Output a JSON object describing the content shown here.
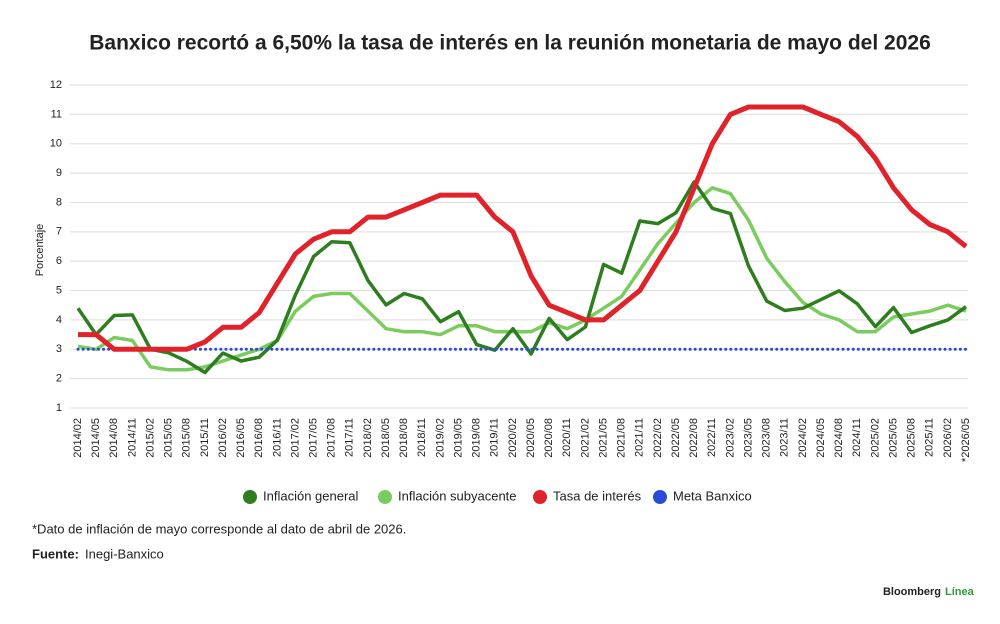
{
  "chart_data": {
    "type": "line",
    "title": "Banxico recortó a 6,50% la tasa de interés en la reunión monetaria de mayo del 2026",
    "y_label": "Porcentaje",
    "categories": [
      "2014/02",
      "2014/05",
      "2014/08",
      "2014/11",
      "2015/02",
      "2015/05",
      "2015/08",
      "2015/11",
      "2016/02",
      "2016/05",
      "2016/08",
      "2016/11",
      "2017/02",
      "2017/05",
      "2017/08",
      "2017/11",
      "2018/02",
      "2018/05",
      "2018/08",
      "2018/11",
      "2019/02",
      "2019/05",
      "2019/08",
      "2019/11",
      "2020/02",
      "2020/05",
      "2020/08",
      "2020/11",
      "2021/02",
      "2021/05",
      "2021/08",
      "2021/11",
      "2022/02",
      "2022/05",
      "2022/08",
      "2022/11",
      "2023/02",
      "2023/05",
      "2023/08",
      "2023/11",
      "2024/02",
      "2024/05",
      "2024/08",
      "2024/11",
      "2025/02",
      "2025/05",
      "2025/08",
      "2025/11",
      "2026/02",
      "*2026/05"
    ],
    "series": [
      {
        "name": "Inflación general",
        "color": "#2e7d1f",
        "values": [
          4.4,
          3.5,
          4.15,
          4.17,
          3.0,
          2.88,
          2.59,
          2.21,
          2.87,
          2.6,
          2.73,
          3.31,
          4.86,
          6.16,
          6.66,
          6.63,
          5.34,
          4.51,
          4.9,
          4.72,
          3.94,
          4.28,
          3.16,
          2.97,
          3.7,
          2.84,
          4.05,
          3.33,
          3.76,
          5.89,
          5.59,
          7.37,
          7.28,
          7.65,
          8.7,
          7.8,
          7.62,
          5.84,
          4.64,
          4.32,
          4.4,
          4.69,
          4.99,
          4.55,
          3.77,
          4.42,
          3.57,
          3.8,
          4.0,
          4.45
        ]
      },
      {
        "name": "Inflación subyacente",
        "color": "#7acc5e",
        "values": [
          3.1,
          3.0,
          3.4,
          3.3,
          2.4,
          2.3,
          2.3,
          2.4,
          2.6,
          2.8,
          3.0,
          3.3,
          4.3,
          4.8,
          4.9,
          4.9,
          4.3,
          3.7,
          3.6,
          3.6,
          3.5,
          3.8,
          3.8,
          3.6,
          3.6,
          3.6,
          3.9,
          3.7,
          4.0,
          4.4,
          4.8,
          5.7,
          6.6,
          7.3,
          8.0,
          8.5,
          8.3,
          7.4,
          6.1,
          5.3,
          4.6,
          4.2,
          4.0,
          3.6,
          3.6,
          4.1,
          4.2,
          4.3,
          4.5,
          4.3
        ]
      },
      {
        "name": "Tasa de interés",
        "color": "#e0232b",
        "values": [
          3.5,
          3.5,
          3.0,
          3.0,
          3.0,
          3.0,
          3.0,
          3.25,
          3.75,
          3.75,
          4.25,
          5.25,
          6.25,
          6.75,
          7.0,
          7.0,
          7.5,
          7.5,
          7.75,
          8.0,
          8.25,
          8.25,
          8.25,
          7.5,
          7.0,
          5.5,
          4.5,
          4.25,
          4.0,
          4.0,
          4.5,
          5.0,
          6.0,
          7.0,
          8.5,
          10.0,
          11.0,
          11.25,
          11.25,
          11.25,
          11.25,
          11.0,
          10.75,
          10.25,
          9.5,
          8.5,
          7.75,
          7.25,
          7.0,
          6.5
        ]
      },
      {
        "name": "Meta Banxico",
        "color": "#2a4bd7",
        "dotted": true,
        "values": [
          3,
          3,
          3,
          3,
          3,
          3,
          3,
          3,
          3,
          3,
          3,
          3,
          3,
          3,
          3,
          3,
          3,
          3,
          3,
          3,
          3,
          3,
          3,
          3,
          3,
          3,
          3,
          3,
          3,
          3,
          3,
          3,
          3,
          3,
          3,
          3,
          3,
          3,
          3,
          3,
          3,
          3,
          3,
          3,
          3,
          3,
          3,
          3,
          3,
          3
        ]
      }
    ],
    "ylim": [
      1,
      12
    ],
    "yticks": [
      1,
      2,
      3,
      4,
      5,
      6,
      7,
      8,
      9,
      10,
      11,
      12
    ],
    "grid": true,
    "legend": "bottom"
  },
  "footer": {
    "note": "*Dato de inflación de mayo corresponde al dato de abril de 2026.",
    "source_label": "Fuente:",
    "source": "Inegi-Banxico",
    "brand": "Bloomberg",
    "brand_accent": "Línea"
  }
}
